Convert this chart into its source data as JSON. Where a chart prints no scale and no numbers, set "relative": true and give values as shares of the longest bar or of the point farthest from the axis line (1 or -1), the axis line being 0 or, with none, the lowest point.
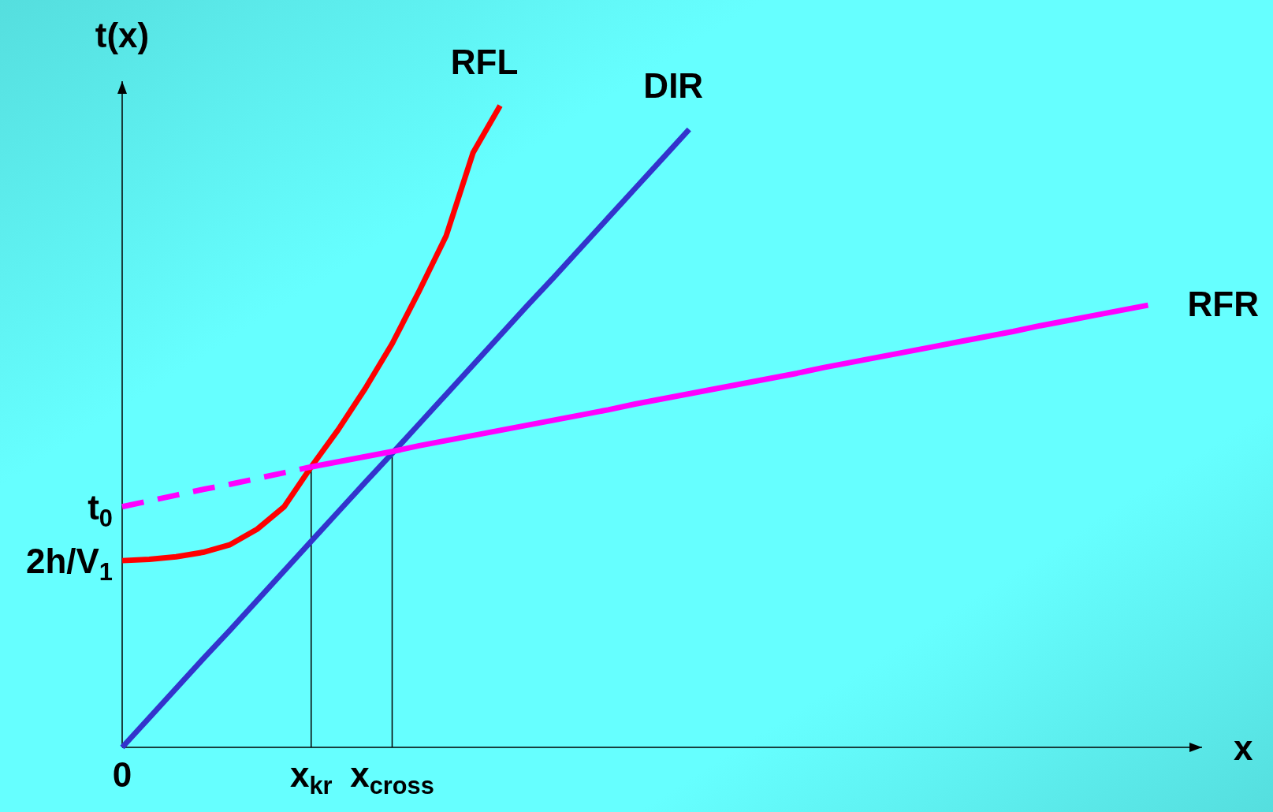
{
  "chart_data": {
    "type": "line",
    "relative": true,
    "xlabel": "x",
    "ylabel": "t(x)",
    "categories": [
      "0",
      null,
      null,
      null,
      null,
      null,
      null,
      "x$_{kr}$",
      null,
      null,
      "x$_{cross}$",
      null,
      null,
      null,
      null,
      null,
      null,
      null,
      null,
      null,
      null,
      null,
      null,
      null,
      null,
      null,
      null,
      null,
      null,
      null,
      null,
      null,
      null,
      null,
      null,
      null,
      null,
      null,
      null,
      null,
      null
    ],
    "series": [
      {
        "name": "RFL",
        "color": "#ff0000",
        "values": [
          0.291,
          0.293,
          0.297,
          0.304,
          0.316,
          0.34,
          0.375,
          0.437,
          0.495,
          0.559,
          0.629,
          0.711,
          0.797,
          0.927,
          1,
          null,
          null,
          null,
          null,
          null,
          null,
          null,
          null,
          null,
          null,
          null,
          null,
          null,
          null,
          null,
          null,
          null,
          null,
          null,
          null,
          null,
          null,
          null,
          null,
          null,
          null
        ]
      },
      {
        "name": "DIR",
        "color": "#3333cc",
        "values": [
          0,
          0.046,
          0.092,
          0.138,
          0.183,
          0.229,
          0.275,
          0.321,
          0.367,
          0.413,
          0.458,
          0.504,
          0.55,
          0.596,
          0.642,
          0.688,
          0.733,
          0.779,
          0.825,
          0.871,
          0.917,
          0.963,
          null,
          null,
          null,
          null,
          null,
          null,
          null,
          null,
          null,
          null,
          null,
          null,
          null,
          null,
          null,
          null,
          null,
          null,
          null
        ]
      },
      {
        "name": "RFR",
        "color": "#ff00ff",
        "values": [
          null,
          null,
          null,
          null,
          null,
          null,
          null,
          0.437,
          0.445,
          0.453,
          0.461,
          0.47,
          0.478,
          0.486,
          0.494,
          0.502,
          0.51,
          0.518,
          0.526,
          0.535,
          0.543,
          0.551,
          0.559,
          0.567,
          0.575,
          0.583,
          0.592,
          0.6,
          0.608,
          0.616,
          0.624,
          0.632,
          0.64,
          0.648,
          0.657,
          0.665,
          0.673,
          0.681,
          0.689,
          null,
          null
        ]
      },
      {
        "color": "#ff00ff",
        "line_style": "dashed",
        "values": [
          0.375,
          0.384,
          0.393,
          0.402,
          0.41,
          0.419,
          0.428,
          0.437,
          null,
          null,
          null,
          null,
          null,
          null,
          null,
          null,
          null,
          null,
          null,
          null,
          null,
          null,
          null,
          null,
          null,
          null,
          null,
          null,
          null,
          null,
          null,
          null,
          null,
          null,
          null,
          null,
          null,
          null,
          null,
          null,
          null
        ]
      }
    ],
    "line_style": "solid",
    "ref_lines": [
      {
        "axis": "x",
        "value": "x$_{kr}$",
        "color": "#000000"
      },
      {
        "axis": "x",
        "value": "x$_{cross}$",
        "color": "#000000"
      }
    ],
    "annotations": [
      {
        "text": "t$_{0}$",
        "x": "0",
        "y": 0.375
      },
      {
        "text": "2h/V$_{1}$",
        "x": "0",
        "y": 0.291
      }
    ]
  }
}
